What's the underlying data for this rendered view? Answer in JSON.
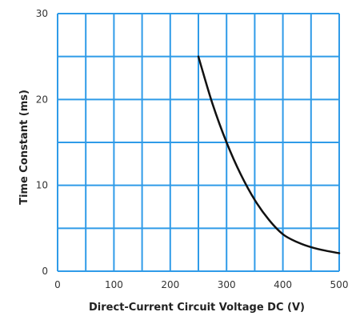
{
  "chart_data": {
    "type": "line",
    "xlabel": "Direct-Current Circuit Voltage DC (V)",
    "ylabel": "Time Constant (ms)",
    "xlim": [
      0,
      500
    ],
    "ylim": [
      0,
      30
    ],
    "x_ticks": [
      "0",
      "100",
      "200",
      "300",
      "400",
      "500"
    ],
    "y_ticks": [
      "0",
      "10",
      "20",
      "30"
    ],
    "grid": true,
    "grid_x_step": 50,
    "grid_y_step": 5,
    "x": [
      250,
      275,
      300,
      325,
      350,
      375,
      400,
      425,
      450,
      475,
      500
    ],
    "y": [
      25.0,
      19.5,
      15.0,
      11.3,
      8.3,
      6.0,
      4.3,
      3.4,
      2.8,
      2.4,
      2.1
    ],
    "colors": {
      "grid": "#2f9be8",
      "line": "#111111"
    }
  }
}
